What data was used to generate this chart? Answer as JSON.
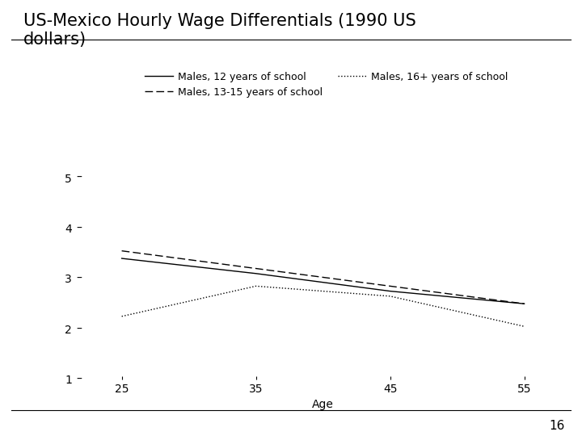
{
  "title": "US-Mexico Hourly Wage Differentials (1990 US\ndollars)",
  "xlabel": "Age",
  "ages": [
    25,
    35,
    45,
    55
  ],
  "line_12yrs": [
    3.4,
    3.1,
    2.75,
    2.5
  ],
  "line_1315yrs": [
    3.55,
    3.2,
    2.85,
    2.5
  ],
  "line_16plus": [
    2.25,
    2.85,
    2.65,
    2.05
  ],
  "ylim": [
    1.0,
    5.5
  ],
  "xlim": [
    22,
    58
  ],
  "yticks": [
    1,
    2,
    3,
    4,
    5
  ],
  "xticks": [
    25,
    35,
    45,
    55
  ],
  "legend_entries": [
    "Males, 12 years of school",
    "Males, 13-15 years of school",
    "Males, 16+ years of school"
  ],
  "background_color": "#ffffff",
  "line_color": "#000000",
  "title_fontsize": 15,
  "axis_fontsize": 10,
  "legend_fontsize": 9,
  "page_number": "16"
}
